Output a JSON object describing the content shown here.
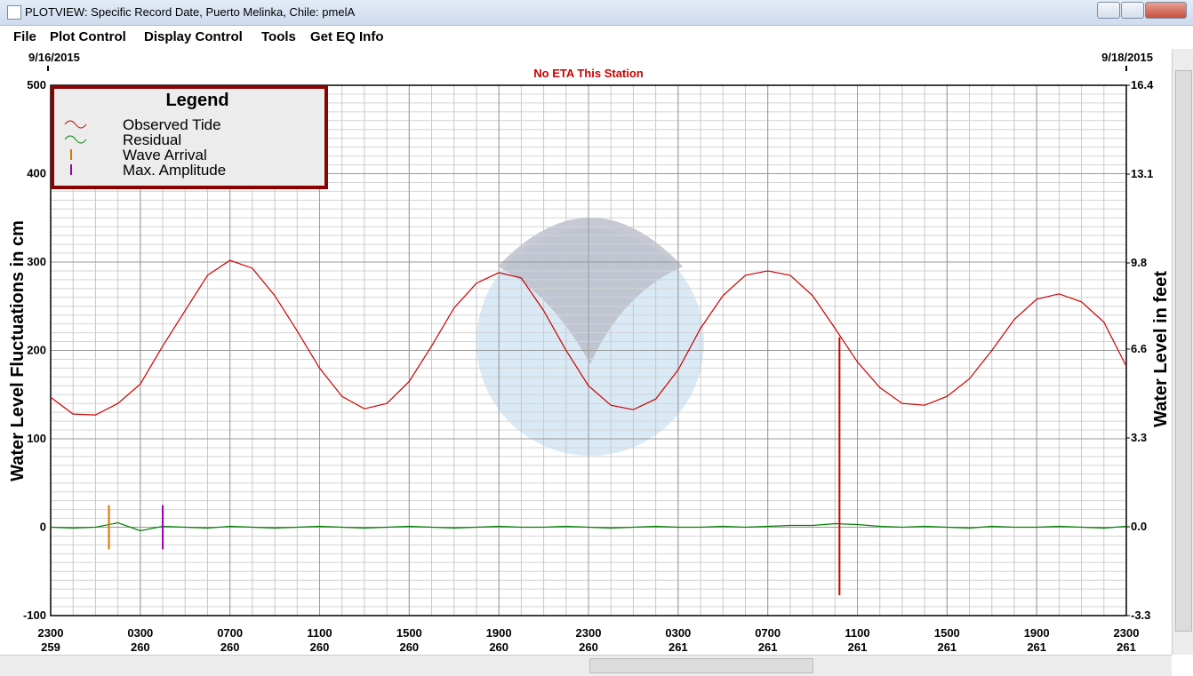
{
  "window": {
    "title": "PLOTVIEW: Specific Record Date, Puerto Melinka, Chile: pmelA",
    "menu": [
      "File",
      "Plot Control",
      "Display Control",
      "Tools",
      "Get EQ Info"
    ]
  },
  "chart_data": {
    "type": "line",
    "title": "No ETA This Station",
    "start_date": "9/16/2015",
    "end_date": "9/18/2015",
    "ylabel": "Water Level Fluctuations in cm",
    "y2label": "Water Level in feet",
    "legend_title": "Legend",
    "x": [
      0,
      1,
      2,
      3,
      4,
      5,
      6,
      7,
      8,
      9,
      10,
      11,
      12,
      13,
      14,
      15,
      16,
      17,
      18,
      19,
      20,
      21,
      22,
      23,
      24,
      25,
      26,
      27,
      28,
      29,
      30,
      31,
      32,
      33,
      34,
      35,
      36,
      37,
      38,
      39,
      40,
      41,
      42,
      43,
      44,
      45,
      46,
      47,
      48
    ],
    "xlim": [
      0,
      48
    ],
    "xticks": [
      {
        "value": 0,
        "label": "2300"
      },
      {
        "value": 4,
        "label": "0300"
      },
      {
        "value": 8,
        "label": "0700"
      },
      {
        "value": 12,
        "label": "1100"
      },
      {
        "value": 16,
        "label": "1500"
      },
      {
        "value": 20,
        "label": "1900"
      },
      {
        "value": 24,
        "label": "2300"
      },
      {
        "value": 28,
        "label": "0300"
      },
      {
        "value": 32,
        "label": "0700"
      },
      {
        "value": 36,
        "label": "1100"
      },
      {
        "value": 40,
        "label": "1500"
      },
      {
        "value": 44,
        "label": "1900"
      },
      {
        "value": 48,
        "label": "2300"
      }
    ],
    "xtick_days": [
      "259",
      "260",
      "260",
      "260",
      "260",
      "260",
      "260",
      "261",
      "261",
      "261",
      "261",
      "261",
      "261"
    ],
    "ylim": [
      -100,
      500
    ],
    "yticks": [
      -100,
      0,
      100,
      200,
      300,
      400,
      500
    ],
    "y2lim": [
      -3.3,
      16.4
    ],
    "y2ticks": [
      -3.3,
      {
        "value": 0,
        "label": "0.0"
      },
      3.3,
      6.6,
      9.8,
      13.1,
      16.4
    ],
    "grid": true,
    "series": [
      {
        "name": "Observed Tide",
        "color": "#cc0000",
        "values": [
          147,
          128,
          127,
          140,
          162,
          205,
          245,
          285,
          302,
          293,
          262,
          222,
          180,
          148,
          134,
          140,
          165,
          205,
          248,
          276,
          288,
          282,
          245,
          200,
          160,
          138,
          133,
          145,
          178,
          225,
          262,
          285,
          290,
          285,
          262,
          225,
          187,
          158,
          140,
          138,
          148,
          168,
          200,
          235,
          258,
          264,
          255,
          232,
          182
        ]
      },
      {
        "name": "Residual",
        "color": "#008000",
        "values": [
          0,
          -1,
          0,
          5,
          -4,
          1,
          0,
          -1,
          1,
          0,
          -1,
          0,
          1,
          0,
          -1,
          0,
          1,
          0,
          -1,
          0,
          1,
          0,
          0,
          1,
          0,
          -1,
          0,
          1,
          0,
          0,
          1,
          0,
          1,
          2,
          2,
          4,
          3,
          1,
          0,
          1,
          0,
          -1,
          1,
          0,
          0,
          1,
          0,
          -1,
          1
        ]
      }
    ],
    "markers": [
      {
        "name": "Wave Arrival",
        "color": "#e07000",
        "x": 2.6,
        "ymin": -25,
        "ymax": 25
      },
      {
        "name": "Max. Amplitude",
        "color": "#9900aa",
        "x": 5.0,
        "ymin": -25,
        "ymax": 25
      }
    ],
    "spikes": [
      {
        "x": 35.2,
        "ymin": -77,
        "ymax": 215
      }
    ]
  }
}
